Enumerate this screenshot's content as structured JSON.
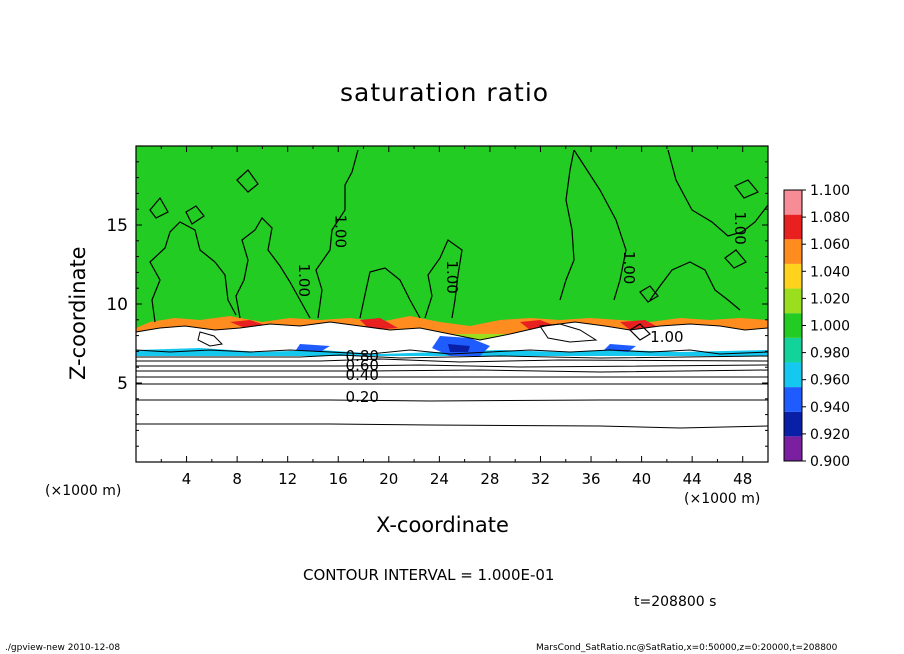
{
  "chart_data": {
    "type": "heatmap",
    "title": "saturation ratio",
    "xlabel": "X-coordinate",
    "ylabel": "Z-coordinate",
    "x_unit_label": "(×1000 m)",
    "xlim": [
      0,
      50
    ],
    "ylim": [
      0,
      20
    ],
    "x_ticks": [
      4,
      8,
      12,
      16,
      20,
      24,
      28,
      32,
      36,
      40,
      44,
      48
    ],
    "y_ticks": [
      5,
      10,
      15
    ],
    "colorbar": {
      "levels": [
        0.9,
        0.92,
        0.94,
        0.96,
        0.98,
        1.0,
        1.02,
        1.04,
        1.06,
        1.08,
        1.1
      ],
      "labels": [
        "1.100",
        "1.080",
        "1.060",
        "1.040",
        "1.020",
        "1.000",
        "0.980",
        "0.960",
        "0.940",
        "0.920",
        "0.900"
      ],
      "colors": [
        "#7a1fa0",
        "#0a1fa8",
        "#1f5cff",
        "#14c8f0",
        "#12d49a",
        "#22cc22",
        "#9ade1e",
        "#ffd21e",
        "#ff8c1e",
        "#e82020",
        "#f58c96"
      ]
    },
    "contour_labels": [
      {
        "text": "1.00",
        "x": 15.8,
        "z": 14.6
      },
      {
        "text": "1.00",
        "x": 12.9,
        "z": 11.5
      },
      {
        "text": "1.00",
        "x": 24.6,
        "z": 11.7
      },
      {
        "text": "1.00",
        "x": 38.6,
        "z": 12.3
      },
      {
        "text": "1.00",
        "x": 47.4,
        "z": 14.8
      },
      {
        "text": "1.00",
        "x": 42.0,
        "z": 7.6
      },
      {
        "text": "0.80",
        "x": 17.9,
        "z": 6.4
      },
      {
        "text": "0.60",
        "x": 17.9,
        "z": 5.8
      },
      {
        "text": "0.40",
        "x": 17.9,
        "z": 5.2
      },
      {
        "text": "0.20",
        "x": 17.9,
        "z": 3.8
      }
    ],
    "contour_interval": "CONTOUR INTERVAL = 1.000E-01",
    "time": "t=208800 s"
  },
  "footer": {
    "left": "./gpview-new  2010-12-08",
    "right": "MarsCond_SatRatio.nc@SatRatio,x=0:50000,z=0:20000,t=208800"
  }
}
